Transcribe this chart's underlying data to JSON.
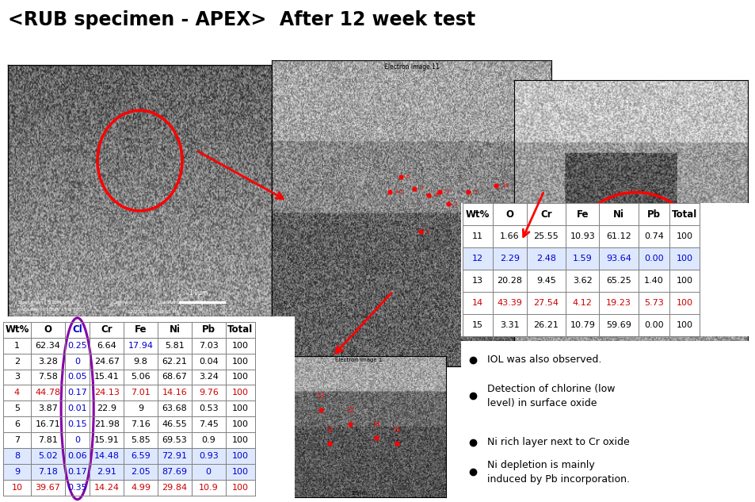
{
  "title": "<RUB specimen - APEX>  After 12 week test",
  "title_fontsize": 17,
  "bg_color": "#ffffff",
  "table1": {
    "headers": [
      "Wt%",
      "O",
      "Cl",
      "Cr",
      "Fe",
      "Ni",
      "Pb",
      "Total"
    ],
    "rows": [
      [
        "1",
        "62.34",
        "0.25",
        "6.64",
        "17.94",
        "5.81",
        "7.03",
        "100"
      ],
      [
        "2",
        "3.28",
        "0",
        "24.67",
        "9.8",
        "62.21",
        "0.04",
        "100"
      ],
      [
        "3",
        "7.58",
        "0.05",
        "15.41",
        "5.06",
        "68.67",
        "3.24",
        "100"
      ],
      [
        "4",
        "44.78",
        "0.17",
        "24.13",
        "7.01",
        "14.16",
        "9.76",
        "100"
      ],
      [
        "5",
        "3.87",
        "0.01",
        "22.9",
        "9",
        "63.68",
        "0.53",
        "100"
      ],
      [
        "6",
        "16.71",
        "0.15",
        "21.98",
        "7.16",
        "46.55",
        "7.45",
        "100"
      ],
      [
        "7",
        "7.81",
        "0",
        "15.91",
        "5.85",
        "69.53",
        "0.9",
        "100"
      ],
      [
        "8",
        "5.02",
        "0.06",
        "14.48",
        "6.59",
        "72.91",
        "0.93",
        "100"
      ],
      [
        "9",
        "7.18",
        "0.17",
        "2.91",
        "2.05",
        "87.69",
        "0",
        "100"
      ],
      [
        "10",
        "39.67",
        "0.35",
        "14.24",
        "4.99",
        "29.84",
        "10.9",
        "100"
      ]
    ],
    "row_colors": [
      "black",
      "black",
      "black",
      "red",
      "black",
      "black",
      "black",
      "blue",
      "blue",
      "red"
    ]
  },
  "table2": {
    "headers": [
      "Wt%",
      "O",
      "Cr",
      "Fe",
      "Ni",
      "Pb",
      "Total"
    ],
    "rows": [
      [
        "11",
        "1.66",
        "25.55",
        "10.93",
        "61.12",
        "0.74",
        "100"
      ],
      [
        "12",
        "2.29",
        "2.48",
        "1.59",
        "93.64",
        "0.00",
        "100"
      ],
      [
        "13",
        "20.28",
        "9.45",
        "3.62",
        "65.25",
        "1.40",
        "100"
      ],
      [
        "14",
        "43.39",
        "27.54",
        "4.12",
        "19.23",
        "5.73",
        "100"
      ],
      [
        "15",
        "3.31",
        "26.21",
        "10.79",
        "59.69",
        "0.00",
        "100"
      ]
    ],
    "row_colors": [
      "black",
      "blue",
      "black",
      "red",
      "black"
    ]
  },
  "bullets": [
    "IOL was also observed.",
    "Detection of chlorine (low\nlevel) in surface oxide",
    "Ni rich layer next to Cr oxide",
    "Ni depletion is mainly\ninduced by Pb incorporation."
  ],
  "red_color": "#cc0000",
  "blue_color": "#0000cc",
  "black_color": "#000000",
  "purple_color": "#8800aa"
}
